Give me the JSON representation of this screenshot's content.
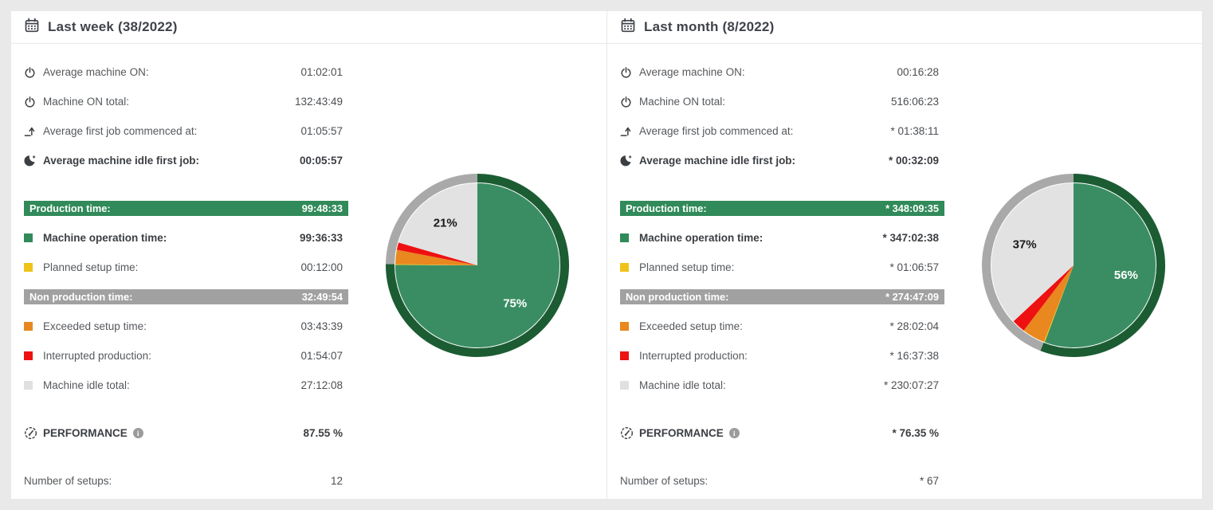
{
  "colors": {
    "green": "#318a59",
    "pie_green": "#3a8d63",
    "ring_dark_green": "#1c5c33",
    "yellow": "#efc319",
    "orange": "#e8881f",
    "red": "#ee1111",
    "idle_gray": "#e0e0e0",
    "pie_idle_gray": "#e2e2e2",
    "banner_gray": "#a1a1a1",
    "ring_gray": "#a9a9a9",
    "label_white": "#ffffff",
    "label_black": "#1a1a1a"
  },
  "panels": [
    {
      "title": "Last week (38/2022)",
      "top_rows": [
        {
          "icon": "power-icon",
          "label": "Average machine ON:",
          "value": "01:02:01"
        },
        {
          "icon": "power-icon",
          "label": "Machine ON total:",
          "value": "132:43:49"
        },
        {
          "icon": "arrow-up-from-line-icon",
          "label": "Average first job commenced at:",
          "value": "01:05:57"
        },
        {
          "icon": "moon-idle-icon",
          "label": "Average machine idle first job:",
          "value": "00:05:57"
        }
      ],
      "production": {
        "label": "Production time:",
        "value": "99:48:33"
      },
      "machine_operation": {
        "label": "Machine operation time:",
        "value": "99:36:33"
      },
      "planned_setup": {
        "label": "Planned setup time:",
        "value": "00:12:00"
      },
      "non_production": {
        "label": "Non production time:",
        "value": "32:49:54"
      },
      "exceeded_setup": {
        "label": "Exceeded setup time:",
        "value": "03:43:39"
      },
      "interrupted": {
        "label": "Interrupted production:",
        "value": "01:54:07"
      },
      "machine_idle": {
        "label": "Machine idle total:",
        "value": "27:12:08"
      },
      "performance": {
        "label": "PERFORMANCE",
        "value": "87.55 %"
      },
      "setups": {
        "label": "Number of setups:",
        "value": "12"
      }
    },
    {
      "title": "Last month (8/2022)",
      "top_rows": [
        {
          "icon": "power-icon",
          "label": "Average machine ON:",
          "value": "00:16:28"
        },
        {
          "icon": "power-icon",
          "label": "Machine ON total:",
          "value": "516:06:23"
        },
        {
          "icon": "arrow-up-from-line-icon",
          "label": "Average first job commenced at:",
          "value": "* 01:38:11"
        },
        {
          "icon": "moon-idle-icon",
          "label": "Average machine idle first job:",
          "value": "* 00:32:09"
        }
      ],
      "production": {
        "label": "Production time:",
        "value": "* 348:09:35"
      },
      "machine_operation": {
        "label": "Machine operation time:",
        "value": "* 347:02:38"
      },
      "planned_setup": {
        "label": "Planned setup time:",
        "value": "* 01:06:57"
      },
      "non_production": {
        "label": "Non production time:",
        "value": "* 274:47:09"
      },
      "exceeded_setup": {
        "label": "Exceeded setup time:",
        "value": "* 28:02:04"
      },
      "interrupted": {
        "label": "Interrupted production:",
        "value": "* 16:37:38"
      },
      "machine_idle": {
        "label": "Machine idle total:",
        "value": "* 230:07:27"
      },
      "performance": {
        "label": "PERFORMANCE",
        "value": "* 76.35 %"
      },
      "setups": {
        "label": "Number of setups:",
        "value": "* 67"
      }
    }
  ],
  "chart_data": [
    {
      "type": "pie",
      "title": "Last week (38/2022) time breakdown",
      "units": "percent of production + non-production time",
      "slices": [
        {
          "name": "machine-operation",
          "color": "#3a8d63",
          "pct": 75.09
        },
        {
          "name": "planned-setup",
          "color": "#efc319",
          "pct": 0.15
        },
        {
          "name": "exceeded-setup",
          "color": "#e8881f",
          "pct": 2.81
        },
        {
          "name": "interrupted-production",
          "color": "#ee1111",
          "pct": 1.44
        },
        {
          "name": "machine-idle",
          "color": "#e2e2e2",
          "pct": 20.51
        }
      ],
      "ring": [
        {
          "name": "production",
          "color": "#1c5c33",
          "pct": 75.24
        },
        {
          "name": "non-production",
          "color": "#a9a9a9",
          "pct": 24.76
        }
      ],
      "labels": [
        {
          "text": "75%",
          "slice": "machine-operation",
          "color": "#ffffff"
        },
        {
          "text": "21%",
          "slice": "machine-idle",
          "color": "#1a1a1a"
        }
      ]
    },
    {
      "type": "pie",
      "title": "Last month (8/2022) time breakdown",
      "units": "percent of production + non-production time",
      "slices": [
        {
          "name": "machine-operation",
          "color": "#3a8d63",
          "pct": 55.71
        },
        {
          "name": "planned-setup",
          "color": "#efc319",
          "pct": 0.18
        },
        {
          "name": "exceeded-setup",
          "color": "#e8881f",
          "pct": 4.5
        },
        {
          "name": "interrupted-production",
          "color": "#ee1111",
          "pct": 2.67
        },
        {
          "name": "machine-idle",
          "color": "#e2e2e2",
          "pct": 36.94
        }
      ],
      "ring": [
        {
          "name": "production",
          "color": "#1c5c33",
          "pct": 55.89
        },
        {
          "name": "non-production",
          "color": "#a9a9a9",
          "pct": 44.11
        }
      ],
      "labels": [
        {
          "text": "56%",
          "slice": "machine-operation",
          "color": "#ffffff"
        },
        {
          "text": "37%",
          "slice": "machine-idle",
          "color": "#1a1a1a"
        }
      ]
    }
  ]
}
